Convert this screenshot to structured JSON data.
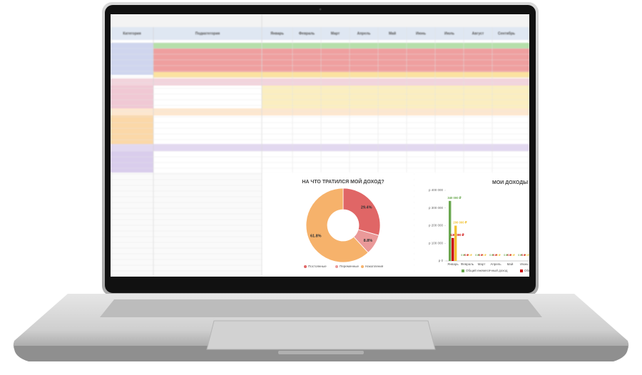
{
  "spreadsheet": {
    "columns": [
      "Категория",
      "Подкатегория",
      "Январь",
      "Февраль",
      "Март",
      "Апрель",
      "Май",
      "Июнь",
      "Июль",
      "Август",
      "Сентябрь"
    ]
  },
  "chart_data": [
    {
      "type": "pie",
      "title": "НА ЧТО ТРАТИЛСЯ МОЙ ДОХОД?",
      "categories": [
        "Постоянные",
        "Переменные",
        "Накопления"
      ],
      "values": [
        29.4,
        8.8,
        61.8
      ],
      "value_labels": [
        "29.4%",
        "8.8%",
        "61.8%"
      ],
      "colors": [
        "#e06666",
        "#ea9999",
        "#f6b26b"
      ],
      "donut": true
    },
    {
      "type": "bar",
      "title": "МОИ ДОХОДЫ",
      "categories": [
        "Январь",
        "Февраль",
        "Март",
        "Апрель",
        "Май",
        "Июнь"
      ],
      "series": [
        {
          "name": "Общий ежемесячный доход",
          "color": "#6aa84f",
          "values": [
            340000,
            0,
            0,
            0,
            0,
            0
          ],
          "value_labels": [
            "340 000 ₽",
            "0 ₽",
            "0 ₽",
            "0 ₽",
            "0 ₽",
            "0 ₽"
          ]
        },
        {
          "name": "Общие",
          "color": "#cc0000",
          "values": [
            130000,
            0,
            0,
            0,
            0,
            0
          ],
          "value_labels": [
            "130 000 ₽",
            "0 ₽",
            "0 ₽",
            "0 ₽",
            "0 ₽",
            "0 ₽"
          ]
        },
        {
          "color": "#f1c232",
          "values": [
            200000,
            0,
            0,
            0,
            0,
            0
          ],
          "value_labels": [
            "200 000 ₽",
            "0 ₽",
            "0 ₽",
            "0 ₽",
            "0 ₽",
            "0 ₽"
          ]
        }
      ],
      "ylim": [
        0,
        400000
      ],
      "yticks": [
        {
          "value": 0,
          "label": "р 0"
        },
        {
          "value": 100000,
          "label": "р 100 000"
        },
        {
          "value": 200000,
          "label": "р 200 000"
        },
        {
          "value": 300000,
          "label": "р 300 000"
        },
        {
          "value": 400000,
          "label": "р 400 000"
        }
      ],
      "grid": false
    }
  ]
}
